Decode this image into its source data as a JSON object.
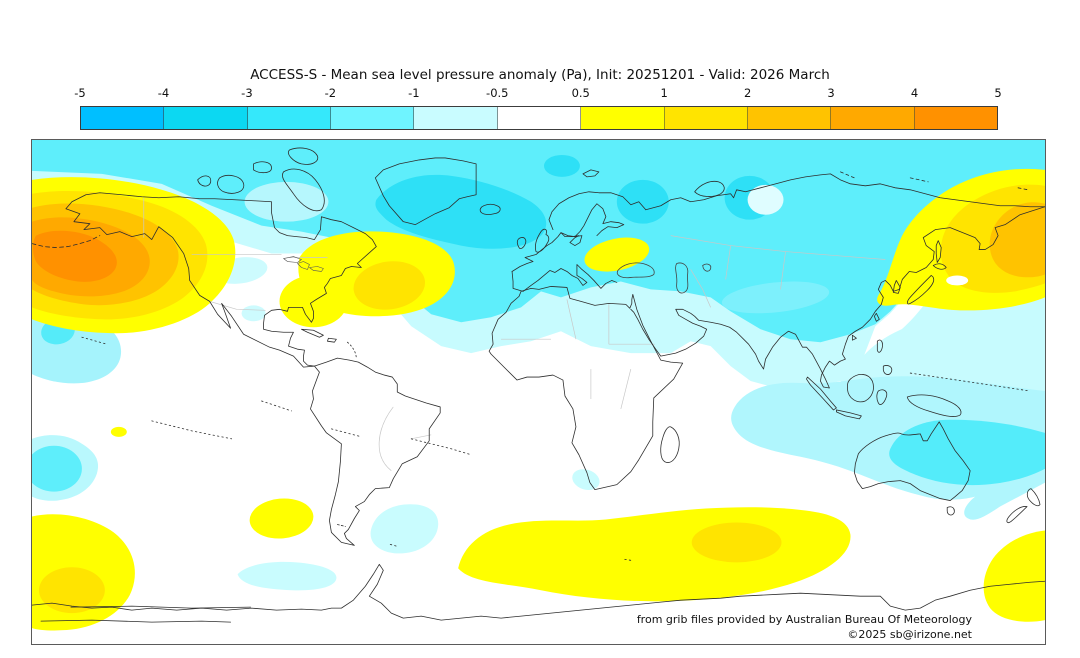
{
  "title": "ACCESS-S - Mean sea level pressure anomaly (Pa), Init: 20251201 - Valid: 2026 March",
  "colorbar": {
    "ticks": [
      "-5",
      "-4",
      "-3",
      "-2",
      "-1",
      "-0.5",
      "0.5",
      "1",
      "2",
      "3",
      "4",
      "5"
    ],
    "colors": [
      "#00bfff",
      "#0cd8f2",
      "#35e8fb",
      "#6ff4ff",
      "#c9fcff",
      "#ffffff",
      "#ffff00",
      "#ffe400",
      "#ffc300",
      "#ffa900",
      "#ff9100"
    ],
    "border_color": "#3c3c3c"
  },
  "map": {
    "attribution": "from grib files provided by Australian Bureau Of Meteorology",
    "copyright": "©2025 sb@irizone.net"
  },
  "chart_data": {
    "type": "heatmap",
    "subtype": "filled_contour_world_map",
    "title": "ACCESS-S - Mean sea level pressure anomaly (Pa), Init: 20251201 - Valid: 2026 March",
    "variable": "Mean sea level pressure anomaly",
    "units": "Pa",
    "model": "ACCESS-S",
    "init_date": "20251201",
    "valid": "2026 March",
    "projection": "equirectangular, 180W to 180E, 90N to 90S",
    "colorbar_levels": [
      -5,
      -4,
      -3,
      -2,
      -1,
      -0.5,
      0.5,
      1,
      2,
      3,
      4,
      5
    ],
    "colorbar_colors": [
      "#00bfff",
      "#0cd8f2",
      "#35e8fb",
      "#6ff4ff",
      "#c9fcff",
      "#ffffff",
      "#ffff00",
      "#ffe400",
      "#ffc300",
      "#ffa900",
      "#ff9100"
    ],
    "legend_position": "top",
    "anomaly_features": [
      {
        "region": "Gulf of Alaska / NE Pacific",
        "sign": "positive",
        "approx_peak_pa": 5
      },
      {
        "region": "NW Pacific off Kamchatka-Japan",
        "sign": "positive",
        "approx_peak_pa": 3
      },
      {
        "region": "Subtropical North Atlantic off SE USA / Gulf of Mexico",
        "sign": "positive",
        "approx_peak_pa": 2
      },
      {
        "region": "Ukraine / Black Sea",
        "sign": "positive",
        "approx_peak_pa": 1
      },
      {
        "region": "Arctic and northern Eurasia band",
        "sign": "negative",
        "approx_peak_pa": -2
      },
      {
        "region": "Iceland / south of Greenland",
        "sign": "negative",
        "approx_peak_pa": -3
      },
      {
        "region": "Central North Pacific near Hawaii",
        "sign": "negative",
        "approx_peak_pa": -2
      },
      {
        "region": "Middle East / Central Asia",
        "sign": "negative",
        "approx_peak_pa": -1
      },
      {
        "region": "Eastern Australia / Coral Sea",
        "sign": "negative",
        "approx_peak_pa": -2
      },
      {
        "region": "Southern Ocean, Atlantic-Indian sector",
        "sign": "positive",
        "approx_peak_pa": 2
      },
      {
        "region": "SE Pacific near Antarctica",
        "sign": "positive",
        "approx_peak_pa": 2
      },
      {
        "region": "Southeast of New Zealand",
        "sign": "positive",
        "approx_peak_pa": 1
      },
      {
        "region": "South Atlantic east of Argentina",
        "sign": "negative",
        "approx_peak_pa": -1
      }
    ]
  }
}
